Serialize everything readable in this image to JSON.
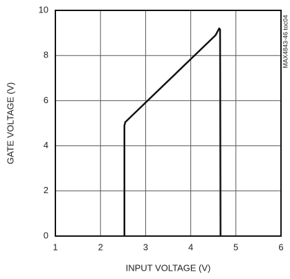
{
  "chart_data": {
    "type": "line",
    "xlabel": "INPUT VOLTAGE (V)",
    "ylabel": "GATE VOLTAGE (V)",
    "annotation": "MAX4843-46 toc04",
    "x": [
      2.53,
      2.53,
      2.55,
      4.55,
      4.63,
      4.65,
      4.66
    ],
    "values": [
      0,
      4.9,
      5.05,
      8.9,
      9.2,
      9.15,
      0
    ],
    "color": "#111111",
    "xlim": [
      1,
      6
    ],
    "ylim": [
      0,
      10
    ],
    "xticks": [
      1,
      2,
      3,
      4,
      5,
      6
    ],
    "yticks": [
      0,
      2,
      4,
      6,
      8,
      10
    ],
    "grid": true
  }
}
